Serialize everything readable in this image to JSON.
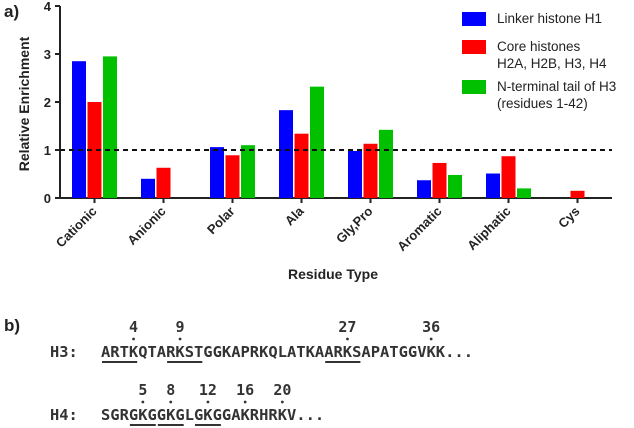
{
  "panel_a_label": "a)",
  "panel_b_label": "b)",
  "chart_data": {
    "type": "bar",
    "xlabel": "Residue Type",
    "ylabel": "Relative Enrichment",
    "ylim": [
      0,
      4
    ],
    "yticks": [
      "0",
      "1",
      "2",
      "3",
      "4"
    ],
    "reference_line": 1,
    "categories": [
      "Cationic",
      "Anionic",
      "Polar",
      "Ala",
      "Gly,Pro",
      "Aromatic",
      "Aliphatic",
      "Cys"
    ],
    "legend_position": "top-right",
    "series": [
      {
        "name": "Linker histone H1",
        "name_lines": [
          "Linker histone H1"
        ],
        "color": "#0000ff",
        "values": [
          2.85,
          0.4,
          1.06,
          1.83,
          0.98,
          0.37,
          0.51,
          0
        ]
      },
      {
        "name": "Core histones H2A, H2B, H3, H4",
        "name_lines": [
          "Core histones",
          "H2A, H2B, H3, H4"
        ],
        "color": "#ff0000",
        "values": [
          2.0,
          0.63,
          0.89,
          1.34,
          1.13,
          0.73,
          0.87,
          0.15
        ]
      },
      {
        "name": "N-terminal tail of H3 (residues 1-42)",
        "name_lines": [
          "N-terminal tail of H3",
          "(residues 1-42)"
        ],
        "color": "#00c000",
        "values": [
          2.95,
          0,
          1.1,
          2.32,
          1.42,
          0.48,
          0.2,
          0
        ]
      }
    ]
  },
  "sequences": [
    {
      "label": "H3:",
      "text": "ARTKQTARKSTGGKAPRKQLATKAARKSAPATGGVKK...",
      "marks": [
        {
          "num": "4",
          "pos": 3
        },
        {
          "num": "9",
          "pos": 8
        },
        {
          "num": "27",
          "pos": 26
        },
        {
          "num": "36",
          "pos": 35
        }
      ],
      "underlines": [
        [
          0,
          4
        ],
        [
          7,
          11
        ],
        [
          24,
          28
        ]
      ]
    },
    {
      "label": "H4:",
      "text": "SGRGKGGKGLGKGGAKRHRKV...",
      "marks": [
        {
          "num": "5",
          "pos": 4
        },
        {
          "num": "8",
          "pos": 7
        },
        {
          "num": "12",
          "pos": 11
        },
        {
          "num": "16",
          "pos": 15
        },
        {
          "num": "20",
          "pos": 19
        }
      ],
      "underlines": [
        [
          3,
          6
        ],
        [
          6,
          9
        ],
        [
          10,
          13
        ]
      ]
    }
  ]
}
